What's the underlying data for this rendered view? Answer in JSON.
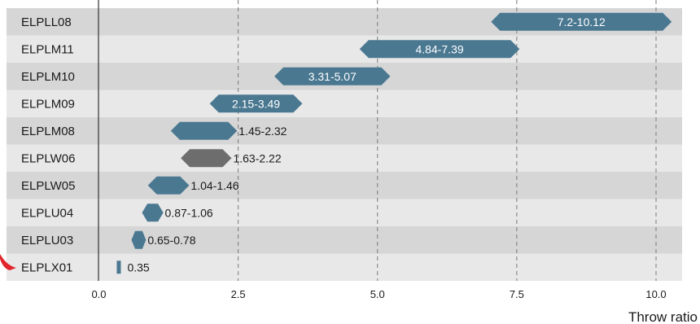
{
  "chart_data": {
    "type": "bar",
    "subtype": "floating-range",
    "title": "",
    "xlabel": "Throw ratio",
    "ylabel": "",
    "xlim": [
      0,
      10.4
    ],
    "xticks": [
      0.0,
      2.5,
      5.0,
      7.5,
      10.0
    ],
    "xtick_labels": [
      "0.0",
      "2.5",
      "5.0",
      "7.5",
      "10.0"
    ],
    "grid": "vertical-dashed",
    "categories": [
      "ELPLL08",
      "ELPLM11",
      "ELPLM10",
      "ELPLM09",
      "ELPLM08",
      "ELPLW06",
      "ELPLW05",
      "ELPLU04",
      "ELPLU03",
      "ELPLX01"
    ],
    "ranges": [
      {
        "min": 7.2,
        "max": 10.12,
        "label": "7.2-10.12",
        "label_inside": true,
        "color": "#4a7891"
      },
      {
        "min": 4.84,
        "max": 7.39,
        "label": "4.84-7.39",
        "label_inside": true,
        "color": "#4a7891"
      },
      {
        "min": 3.31,
        "max": 5.07,
        "label": "3.31-5.07",
        "label_inside": true,
        "color": "#4a7891"
      },
      {
        "min": 2.15,
        "max": 3.49,
        "label": "2.15-3.49",
        "label_inside": true,
        "color": "#4a7891"
      },
      {
        "min": 1.45,
        "max": 2.32,
        "label": "1.45-2.32",
        "label_inside": false,
        "color": "#4a7891"
      },
      {
        "min": 1.63,
        "max": 2.22,
        "label": "1.63-2.22",
        "label_inside": false,
        "color": "#6d6d6d"
      },
      {
        "min": 1.04,
        "max": 1.46,
        "label": "1.04-1.46",
        "label_inside": false,
        "color": "#4a7891"
      },
      {
        "min": 0.87,
        "max": 1.06,
        "label": "0.87-1.06",
        "label_inside": false,
        "color": "#4a7891"
      },
      {
        "min": 0.65,
        "max": 0.78,
        "label": "0.65-0.78",
        "label_inside": false,
        "color": "#4a7891"
      },
      {
        "min": 0.35,
        "max": 0.35,
        "label": "0.35",
        "label_inside": false,
        "color": "#4a7891",
        "fixed": true
      }
    ],
    "colors": {
      "bar_primary": "#4a7891",
      "bar_secondary": "#6d6d6d",
      "row_dark": "#d6d6d6",
      "row_light": "#e8e8e8",
      "highlight_marker": "#e0252b"
    }
  }
}
